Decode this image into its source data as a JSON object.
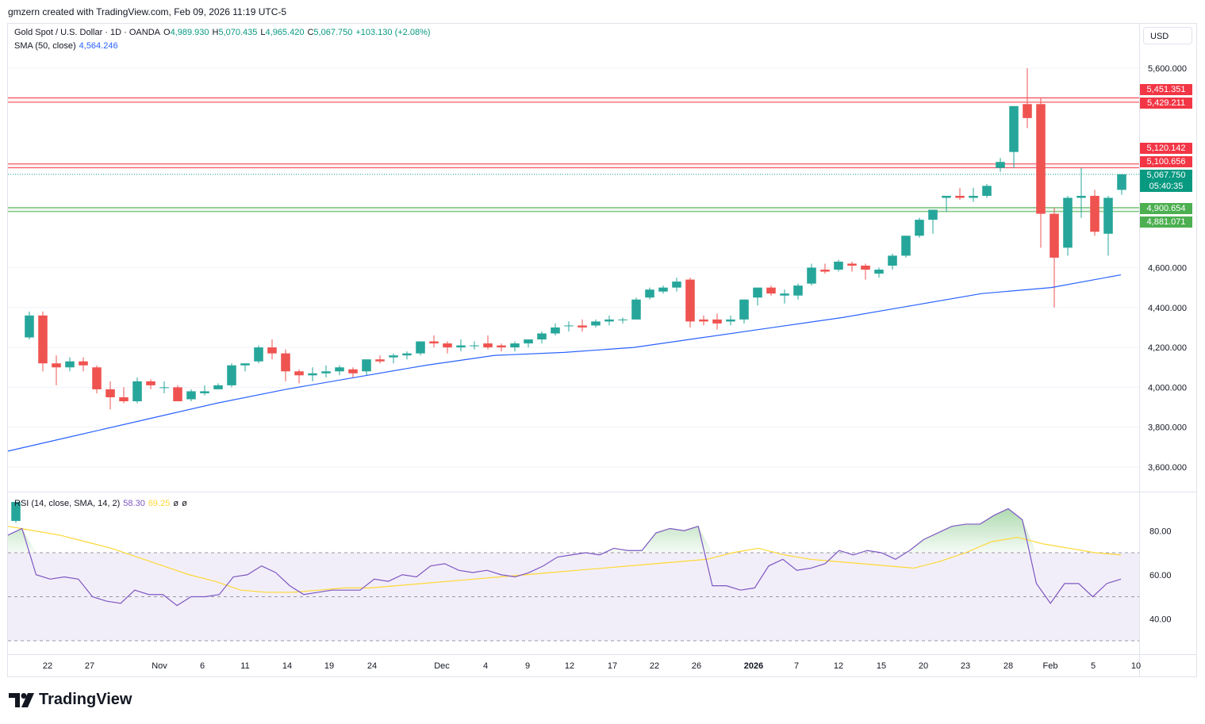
{
  "header": {
    "attribution": "gmzern created with TradingView.com, Feb 09, 2026 11:19 UTC-5"
  },
  "legend": {
    "symbol": "Gold Spot / U.S. Dollar · 1D · OANDA",
    "o_label": "O",
    "o_value": "4,989.930",
    "h_label": "H",
    "h_value": "5,070.435",
    "l_label": "L",
    "l_value": "4,965.420",
    "c_label": "C",
    "c_value": "5,067.750",
    "change": "+103.130 (+2.08%)",
    "sma_label": "SMA (50, close)",
    "sma_value": "4,564.246",
    "rsi_label": "RSI (14, close, SMA, 14, 2)",
    "rsi_value": "58.30",
    "rsi_ma_value": "69.25",
    "rsi_extra1": "ø",
    "rsi_extra2": "ø"
  },
  "currency_button": "USD",
  "brand": "TradingView",
  "price_tags": {
    "r1": "5,451.351",
    "r2": "5,429.211",
    "r3": "5,120.142",
    "r4": "5,100.656",
    "current": "5,067.750",
    "countdown": "05:40:35",
    "g1": "4,900.654",
    "g2": "4,881.071"
  },
  "colors": {
    "up": "#26a69a",
    "down": "#ef5350",
    "sma": "#2962ff",
    "rsi": "#7e57c2",
    "rsi_ma": "#fdd835",
    "resistance": "#f23645",
    "support": "#4caf50"
  },
  "chart_data": {
    "type": "candlestick",
    "symbol": "Gold Spot / U.S. Dollar",
    "timeframe": "1D",
    "price_axis": {
      "ticks": [
        3600,
        3800,
        4000,
        4200,
        4400,
        4600,
        5600
      ],
      "tick_labels": [
        "3,600.000",
        "3,800.000",
        "4,000.000",
        "4,200.000",
        "4,400.000",
        "4,600.000",
        "5,600.000"
      ]
    },
    "x_tick_labels": [
      "22",
      "27",
      "Nov",
      "6",
      "11",
      "14",
      "19",
      "24",
      "Dec",
      "4",
      "9",
      "12",
      "17",
      "22",
      "26",
      "2026",
      "7",
      "12",
      "15",
      "20",
      "23",
      "28",
      "Feb",
      "5",
      "10"
    ],
    "candles": [
      [
        3330,
        3425,
        3320,
        3425,
        3425
      ],
      [
        4250,
        4380,
        4240,
        4360,
        4360
      ],
      [
        4360,
        4380,
        4080,
        4120,
        4120
      ],
      [
        4120,
        4160,
        4010,
        4100,
        4100
      ],
      [
        4100,
        4150,
        4080,
        4130,
        4130
      ],
      [
        4130,
        4150,
        4080,
        4110,
        4110
      ],
      [
        4100,
        4110,
        3970,
        3990,
        3990
      ],
      [
        3990,
        4030,
        3890,
        3950,
        3950
      ],
      [
        3950,
        4000,
        3920,
        3930,
        3930
      ],
      [
        3930,
        4050,
        3920,
        4030,
        4030
      ],
      [
        4030,
        4040,
        3990,
        4010,
        4010
      ],
      [
        4000,
        4030,
        3970,
        4000,
        4000
      ],
      [
        4000,
        4010,
        3930,
        3930,
        3930
      ],
      [
        3940,
        3990,
        3930,
        3980,
        3980
      ],
      [
        3970,
        4010,
        3960,
        3980,
        3980
      ],
      [
        3990,
        4020,
        3990,
        4010,
        4010
      ],
      [
        4010,
        4120,
        4000,
        4110,
        4110
      ],
      [
        4110,
        4120,
        4080,
        4120,
        4120
      ],
      [
        4130,
        4210,
        4120,
        4200,
        4200
      ],
      [
        4200,
        4240,
        4140,
        4170,
        4170
      ],
      [
        4170,
        4190,
        4030,
        4080,
        4080
      ],
      [
        4080,
        4090,
        4020,
        4060,
        4060
      ],
      [
        4060,
        4100,
        4030,
        4070,
        4070
      ],
      [
        4070,
        4110,
        4050,
        4080,
        4080
      ],
      [
        4080,
        4110,
        4060,
        4100,
        4100
      ],
      [
        4090,
        4100,
        4050,
        4070,
        4070
      ],
      [
        4080,
        4140,
        4060,
        4140,
        4140
      ],
      [
        4140,
        4160,
        4120,
        4130,
        4130
      ],
      [
        4150,
        4170,
        4120,
        4160,
        4160
      ],
      [
        4160,
        4180,
        4140,
        4170,
        4170
      ],
      [
        4170,
        4230,
        4160,
        4230,
        4230
      ],
      [
        4230,
        4260,
        4200,
        4220,
        4220
      ],
      [
        4220,
        4230,
        4170,
        4200,
        4200
      ],
      [
        4200,
        4240,
        4180,
        4210,
        4210
      ],
      [
        4210,
        4230,
        4190,
        4210,
        4210
      ],
      [
        4220,
        4260,
        4190,
        4200,
        4200
      ],
      [
        4210,
        4220,
        4180,
        4200,
        4200
      ],
      [
        4200,
        4230,
        4180,
        4220,
        4220
      ],
      [
        4220,
        4240,
        4200,
        4240,
        4240
      ],
      [
        4240,
        4280,
        4220,
        4270,
        4270
      ],
      [
        4270,
        4320,
        4260,
        4300,
        4300
      ],
      [
        4310,
        4330,
        4280,
        4310,
        4310
      ],
      [
        4310,
        4340,
        4280,
        4300,
        4300
      ],
      [
        4310,
        4340,
        4300,
        4330,
        4330
      ],
      [
        4330,
        4360,
        4310,
        4340,
        4340
      ],
      [
        4340,
        4350,
        4320,
        4340,
        4340
      ],
      [
        4340,
        4450,
        4340,
        4440,
        4440
      ],
      [
        4450,
        4500,
        4440,
        4490,
        4490
      ],
      [
        4480,
        4510,
        4470,
        4500,
        4500
      ],
      [
        4500,
        4550,
        4480,
        4530,
        4530
      ],
      [
        4540,
        4550,
        4300,
        4330,
        4330
      ],
      [
        4340,
        4360,
        4310,
        4330,
        4330
      ],
      [
        4340,
        4370,
        4290,
        4320,
        4320
      ],
      [
        4330,
        4360,
        4310,
        4340,
        4340
      ],
      [
        4340,
        4440,
        4320,
        4440,
        4440
      ],
      [
        4450,
        4500,
        4410,
        4500,
        4500
      ],
      [
        4500,
        4510,
        4460,
        4470,
        4470
      ],
      [
        4460,
        4490,
        4420,
        4470,
        4470
      ],
      [
        4460,
        4520,
        4440,
        4510,
        4510
      ],
      [
        4520,
        4620,
        4510,
        4600,
        4600
      ],
      [
        4590,
        4620,
        4570,
        4580,
        4580
      ],
      [
        4590,
        4640,
        4580,
        4630,
        4630
      ],
      [
        4620,
        4630,
        4580,
        4610,
        4610
      ],
      [
        4610,
        4620,
        4540,
        4590,
        4590
      ],
      [
        4570,
        4600,
        4550,
        4590,
        4590
      ],
      [
        4610,
        4670,
        4590,
        4660,
        4660
      ],
      [
        4660,
        4760,
        4650,
        4760,
        4760
      ],
      [
        4760,
        4850,
        4750,
        4840,
        4840
      ],
      [
        4840,
        4890,
        4770,
        4890,
        4890
      ],
      [
        4950,
        4950,
        4880,
        4960,
        4960
      ],
      [
        4960,
        5000,
        4940,
        4950,
        4950
      ],
      [
        4950,
        5000,
        4930,
        4960,
        4960
      ],
      [
        4960,
        5020,
        4950,
        5010,
        5010
      ],
      [
        5100,
        5150,
        5080,
        5130,
        5130
      ],
      [
        5180,
        5410,
        5100,
        5410,
        5410
      ],
      [
        5420,
        5600,
        5300,
        5350,
        5350
      ],
      [
        5420,
        5450,
        4700,
        4870,
        4870
      ],
      [
        4870,
        4900,
        4400,
        4650,
        4650
      ],
      [
        4700,
        4960,
        4660,
        4950,
        4950
      ],
      [
        4950,
        5100,
        4850,
        4960,
        4960
      ],
      [
        4960,
        4990,
        4760,
        4780,
        4780
      ],
      [
        4770,
        4960,
        4660,
        4950,
        4950
      ],
      [
        4990,
        5070,
        4965,
        5068,
        5068
      ]
    ],
    "candle_notes": "each candle is [open, high, low, close, close]",
    "sma50": [
      3680,
      3760,
      3840,
      3920,
      3990,
      4050,
      4110,
      4160,
      4175,
      4200,
      4250,
      4300,
      4350,
      4410,
      4470,
      4500,
      4564
    ],
    "horizontal_levels": {
      "resistance": [
        5451.351,
        5429.211,
        5120.142,
        5100.656
      ],
      "support": [
        4900.654,
        4881.071
      ],
      "last_price": 5067.75
    },
    "rsi_axis": {
      "ticks": [
        40,
        60,
        80
      ],
      "tick_labels": [
        "40.00",
        "60.00",
        "80.00"
      ],
      "overbought": 70,
      "mid": 50,
      "oversold": 30,
      "ylim": [
        23,
        92
      ]
    },
    "rsi": [
      78,
      81,
      60,
      58,
      59,
      58,
      50,
      48,
      47,
      53,
      51,
      51,
      46,
      50,
      50,
      51,
      59,
      60,
      64,
      61,
      55,
      51,
      52,
      53,
      53,
      53,
      58,
      57,
      60,
      59,
      64,
      65,
      62,
      61,
      62,
      60,
      59,
      61,
      64,
      68,
      69,
      70,
      69,
      72,
      71,
      71,
      79,
      81,
      80,
      82,
      55,
      55,
      53,
      54,
      64,
      67,
      62,
      63,
      65,
      71,
      69,
      71,
      70,
      67,
      71,
      76,
      79,
      82,
      83,
      83,
      87,
      90,
      85,
      56,
      47,
      56,
      56,
      50,
      56,
      58
    ],
    "rsi_ma": [
      82,
      80,
      78,
      75,
      72,
      68,
      64,
      60,
      57,
      53,
      52,
      52,
      53,
      54,
      54,
      55,
      56,
      57,
      58,
      59,
      60,
      61,
      62,
      63,
      64,
      65,
      66,
      67,
      70,
      72,
      69,
      67,
      66,
      65,
      64,
      63,
      66,
      70,
      75,
      77,
      74,
      72,
      70,
      69
    ]
  }
}
